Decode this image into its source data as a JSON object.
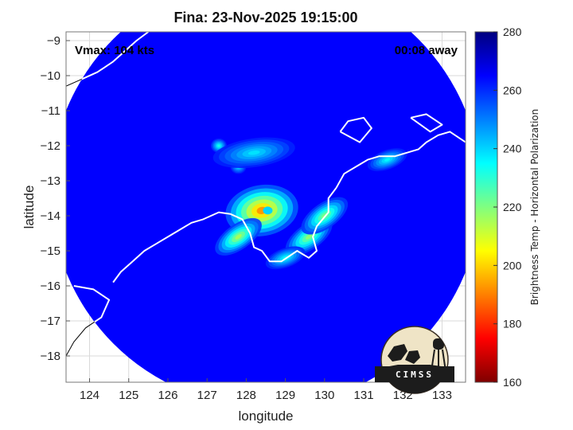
{
  "chart_data": {
    "type": "heatmap",
    "title": "Fina: 23-Nov-2025 19:15:00",
    "xlabel": "longitude",
    "ylabel": "latitude",
    "xlim": [
      123.4,
      133.6
    ],
    "ylim": [
      -18.75,
      -8.75
    ],
    "xticks": [
      124,
      125,
      126,
      127,
      128,
      129,
      130,
      131,
      132,
      133
    ],
    "yticks": [
      -9,
      -10,
      -11,
      -12,
      -13,
      -14,
      -15,
      -16,
      -17,
      -18
    ],
    "grid": true,
    "annotations": {
      "top_left": "Vmax: 104 kts",
      "top_right": "00:08 away"
    },
    "colorbar": {
      "label": "Brightness Temp - Horizontal Polarization",
      "range": [
        160,
        280
      ],
      "ticks": [
        280,
        260,
        240,
        220,
        200,
        180,
        160
      ],
      "colormap": "jet"
    },
    "storm_center": {
      "lon": 128.5,
      "lat": -13.85
    },
    "swath": {
      "center_lon": 128.5,
      "center_lat": -13.3,
      "radius_deg": 5.5,
      "east_edge_lon": 133.6
    },
    "field": {
      "background_temp": 265,
      "features": [
        {
          "kind": "eyewall",
          "lon": 128.4,
          "lat": -13.85,
          "min_temp": 192
        },
        {
          "kind": "eye",
          "lon": 128.55,
          "lat": -13.85,
          "temp": 240
        },
        {
          "kind": "rainband",
          "lon": 129.6,
          "lat": -14.6,
          "min_temp": 218
        },
        {
          "kind": "rainband",
          "lon": 130.0,
          "lat": -14.0,
          "min_temp": 220
        },
        {
          "kind": "rainband",
          "lon": 127.8,
          "lat": -14.6,
          "min_temp": 215
        },
        {
          "kind": "spot",
          "lon": 127.3,
          "lat": -12.0,
          "min_temp": 232
        },
        {
          "kind": "spot",
          "lon": 127.8,
          "lat": -12.6,
          "min_temp": 238
        },
        {
          "kind": "band",
          "lon": 128.2,
          "lat": -12.2,
          "min_temp": 238
        },
        {
          "kind": "coast_land",
          "lon": 129.0,
          "lat": -15.2,
          "min_temp": 234
        },
        {
          "kind": "coast_land",
          "lon": 131.6,
          "lat": -12.4,
          "min_temp": 235
        }
      ]
    },
    "coastline": [
      [
        [
          124.6,
          -15.9
        ],
        [
          124.8,
          -15.6
        ],
        [
          125.1,
          -15.3
        ],
        [
          125.4,
          -15.0
        ],
        [
          125.7,
          -14.8
        ],
        [
          126.0,
          -14.6
        ],
        [
          126.3,
          -14.4
        ],
        [
          126.6,
          -14.2
        ],
        [
          126.9,
          -14.1
        ],
        [
          127.3,
          -13.9
        ],
        [
          127.6,
          -13.95
        ],
        [
          127.9,
          -14.1
        ],
        [
          128.1,
          -14.5
        ],
        [
          128.2,
          -14.9
        ],
        [
          128.4,
          -15.0
        ],
        [
          128.6,
          -15.3
        ],
        [
          128.9,
          -15.3
        ],
        [
          129.3,
          -15.0
        ],
        [
          129.6,
          -15.2
        ],
        [
          129.8,
          -15.0
        ],
        [
          129.7,
          -14.6
        ],
        [
          129.8,
          -14.3
        ],
        [
          130.1,
          -13.9
        ],
        [
          130.1,
          -13.5
        ],
        [
          130.3,
          -13.2
        ],
        [
          130.5,
          -12.8
        ],
        [
          130.8,
          -12.6
        ],
        [
          131.1,
          -12.4
        ],
        [
          131.4,
          -12.3
        ],
        [
          131.8,
          -12.3
        ],
        [
          132.1,
          -12.2
        ],
        [
          132.4,
          -12.1
        ],
        [
          132.6,
          -11.9
        ],
        [
          132.9,
          -11.7
        ],
        [
          133.2,
          -11.6
        ],
        [
          133.6,
          -11.9
        ]
      ],
      [
        [
          130.4,
          -11.6
        ],
        [
          130.6,
          -11.3
        ],
        [
          131.0,
          -11.2
        ],
        [
          131.2,
          -11.5
        ],
        [
          130.9,
          -11.9
        ],
        [
          130.4,
          -11.6
        ]
      ],
      [
        [
          132.2,
          -11.2
        ],
        [
          132.6,
          -11.1
        ],
        [
          133.0,
          -11.4
        ],
        [
          132.7,
          -11.6
        ],
        [
          132.2,
          -11.2
        ]
      ],
      [
        [
          123.6,
          -16.0
        ],
        [
          124.1,
          -16.1
        ],
        [
          124.5,
          -16.4
        ],
        [
          124.3,
          -16.9
        ],
        [
          123.9,
          -17.2
        ],
        [
          123.6,
          -17.6
        ],
        [
          123.4,
          -18.0
        ]
      ],
      [
        [
          123.4,
          -10.3
        ],
        [
          123.8,
          -10.1
        ],
        [
          124.2,
          -9.9
        ],
        [
          124.6,
          -9.6
        ],
        [
          124.9,
          -9.3
        ],
        [
          125.2,
          -9.0
        ],
        [
          125.5,
          -8.75
        ]
      ]
    ]
  },
  "logo": {
    "text": "CIMSS"
  },
  "colors": {
    "gridline": "#d9d9d9",
    "coastline": "#ffffff",
    "outside_coastline": "#000000",
    "axes_box": "#777777"
  }
}
